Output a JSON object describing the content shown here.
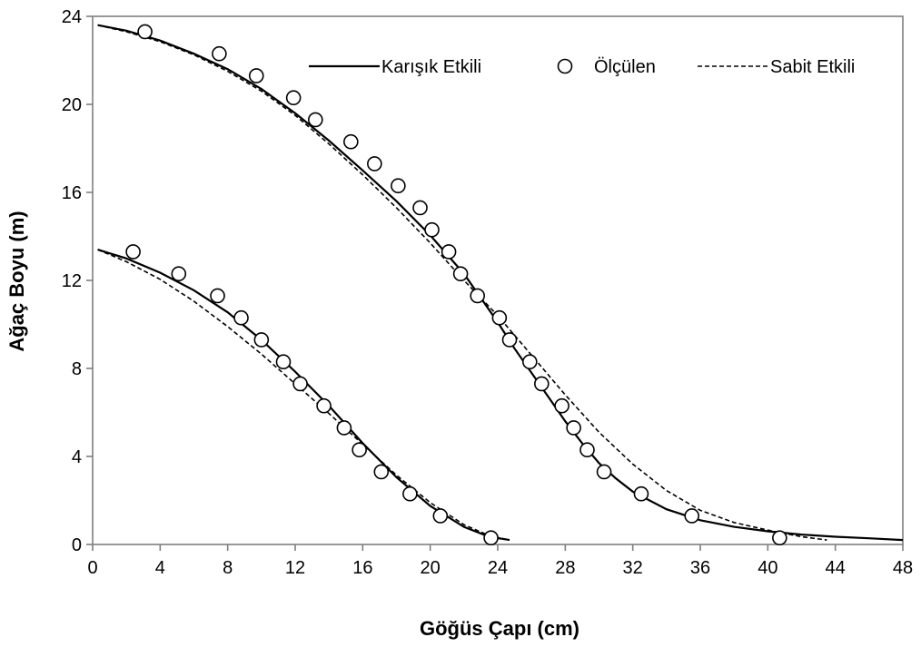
{
  "chart_data": {
    "type": "scatter",
    "title": "",
    "xlabel": "Göğüs Çapı (cm)",
    "ylabel": "Ağaç Boyu (m)",
    "xlim": [
      0,
      48
    ],
    "ylim": [
      0,
      24
    ],
    "xticks": [
      0,
      4,
      8,
      12,
      16,
      20,
      24,
      28,
      32,
      36,
      40,
      44,
      48
    ],
    "yticks": [
      0,
      4,
      8,
      12,
      16,
      20,
      24
    ],
    "grid": false,
    "legend_position": "top-right",
    "legend": [
      "Karışık Etkili",
      "Ölçülen",
      "Sabit Etkili"
    ],
    "series": [
      {
        "name": "Ölçülen",
        "kind": "markers",
        "points": [
          [
            2.4,
            13.3
          ],
          [
            5.1,
            12.3
          ],
          [
            7.4,
            11.3
          ],
          [
            8.8,
            10.3
          ],
          [
            10.0,
            9.3
          ],
          [
            11.3,
            8.3
          ],
          [
            12.3,
            7.3
          ],
          [
            13.7,
            6.3
          ],
          [
            14.9,
            5.3
          ],
          [
            15.8,
            4.3
          ],
          [
            17.1,
            3.3
          ],
          [
            18.8,
            2.3
          ],
          [
            20.6,
            1.3
          ],
          [
            23.6,
            0.3
          ],
          [
            3.1,
            23.3
          ],
          [
            7.5,
            22.3
          ],
          [
            9.7,
            21.3
          ],
          [
            11.9,
            20.3
          ],
          [
            13.2,
            19.3
          ],
          [
            15.3,
            18.3
          ],
          [
            16.7,
            17.3
          ],
          [
            18.1,
            16.3
          ],
          [
            19.4,
            15.3
          ],
          [
            20.1,
            14.3
          ],
          [
            21.1,
            13.3
          ],
          [
            21.8,
            12.3
          ],
          [
            22.8,
            11.3
          ],
          [
            24.1,
            10.3
          ],
          [
            24.7,
            9.3
          ],
          [
            25.9,
            8.3
          ],
          [
            26.6,
            7.3
          ],
          [
            27.8,
            6.3
          ],
          [
            28.5,
            5.3
          ],
          [
            29.3,
            4.3
          ],
          [
            30.3,
            3.3
          ],
          [
            32.5,
            2.3
          ],
          [
            35.5,
            1.3
          ],
          [
            40.7,
            0.3
          ]
        ]
      },
      {
        "name": "Karışık Etkili",
        "kind": "solid-line",
        "curves": [
          [
            [
              0.3,
              13.4
            ],
            [
              2,
              13.0
            ],
            [
              4,
              12.35
            ],
            [
              6,
              11.55
            ],
            [
              8,
              10.55
            ],
            [
              10,
              9.3
            ],
            [
              12,
              7.85
            ],
            [
              14,
              6.3
            ],
            [
              16,
              4.6
            ],
            [
              18,
              3.05
            ],
            [
              20,
              1.75
            ],
            [
              22,
              0.8
            ],
            [
              23.5,
              0.35
            ],
            [
              24.7,
              0.2
            ]
          ],
          [
            [
              0.3,
              23.6
            ],
            [
              2,
              23.35
            ],
            [
              4,
              22.9
            ],
            [
              6,
              22.3
            ],
            [
              8,
              21.6
            ],
            [
              10,
              20.7
            ],
            [
              12,
              19.6
            ],
            [
              14,
              18.35
            ],
            [
              16,
              17.0
            ],
            [
              18,
              15.6
            ],
            [
              20,
              14.05
            ],
            [
              22,
              12.3
            ],
            [
              24,
              10.1
            ],
            [
              25,
              8.9
            ],
            [
              26,
              7.8
            ],
            [
              27,
              6.7
            ],
            [
              28,
              5.6
            ],
            [
              29,
              4.6
            ],
            [
              30,
              3.7
            ],
            [
              31,
              3.0
            ],
            [
              32,
              2.4
            ],
            [
              34,
              1.6
            ],
            [
              36,
              1.1
            ],
            [
              38,
              0.8
            ],
            [
              40,
              0.6
            ],
            [
              42,
              0.45
            ],
            [
              44,
              0.35
            ],
            [
              46,
              0.28
            ],
            [
              48,
              0.2
            ]
          ]
        ]
      },
      {
        "name": "Sabit Etkili",
        "kind": "dashed-line",
        "curves": [
          [
            [
              0.3,
              13.4
            ],
            [
              2,
              12.85
            ],
            [
              4,
              12.05
            ],
            [
              6,
              11.05
            ],
            [
              8,
              9.9
            ],
            [
              10,
              8.65
            ],
            [
              12,
              7.3
            ],
            [
              14,
              5.95
            ],
            [
              16,
              4.55
            ],
            [
              18,
              3.15
            ],
            [
              20,
              1.9
            ],
            [
              22,
              0.9
            ],
            [
              23.5,
              0.4
            ],
            [
              24.7,
              0.2
            ]
          ],
          [
            [
              0.3,
              23.6
            ],
            [
              2,
              23.3
            ],
            [
              4,
              22.85
            ],
            [
              6,
              22.25
            ],
            [
              8,
              21.5
            ],
            [
              10,
              20.6
            ],
            [
              12,
              19.5
            ],
            [
              14,
              18.2
            ],
            [
              16,
              16.8
            ],
            [
              18,
              15.3
            ],
            [
              20,
              13.7
            ],
            [
              22,
              12.0
            ],
            [
              24,
              10.4
            ],
            [
              26,
              8.6
            ],
            [
              28,
              6.8
            ],
            [
              30,
              5.1
            ],
            [
              32,
              3.65
            ],
            [
              34,
              2.45
            ],
            [
              36,
              1.55
            ],
            [
              38,
              1.0
            ],
            [
              40,
              0.65
            ],
            [
              42,
              0.35
            ],
            [
              43.5,
              0.2
            ]
          ]
        ]
      }
    ]
  }
}
